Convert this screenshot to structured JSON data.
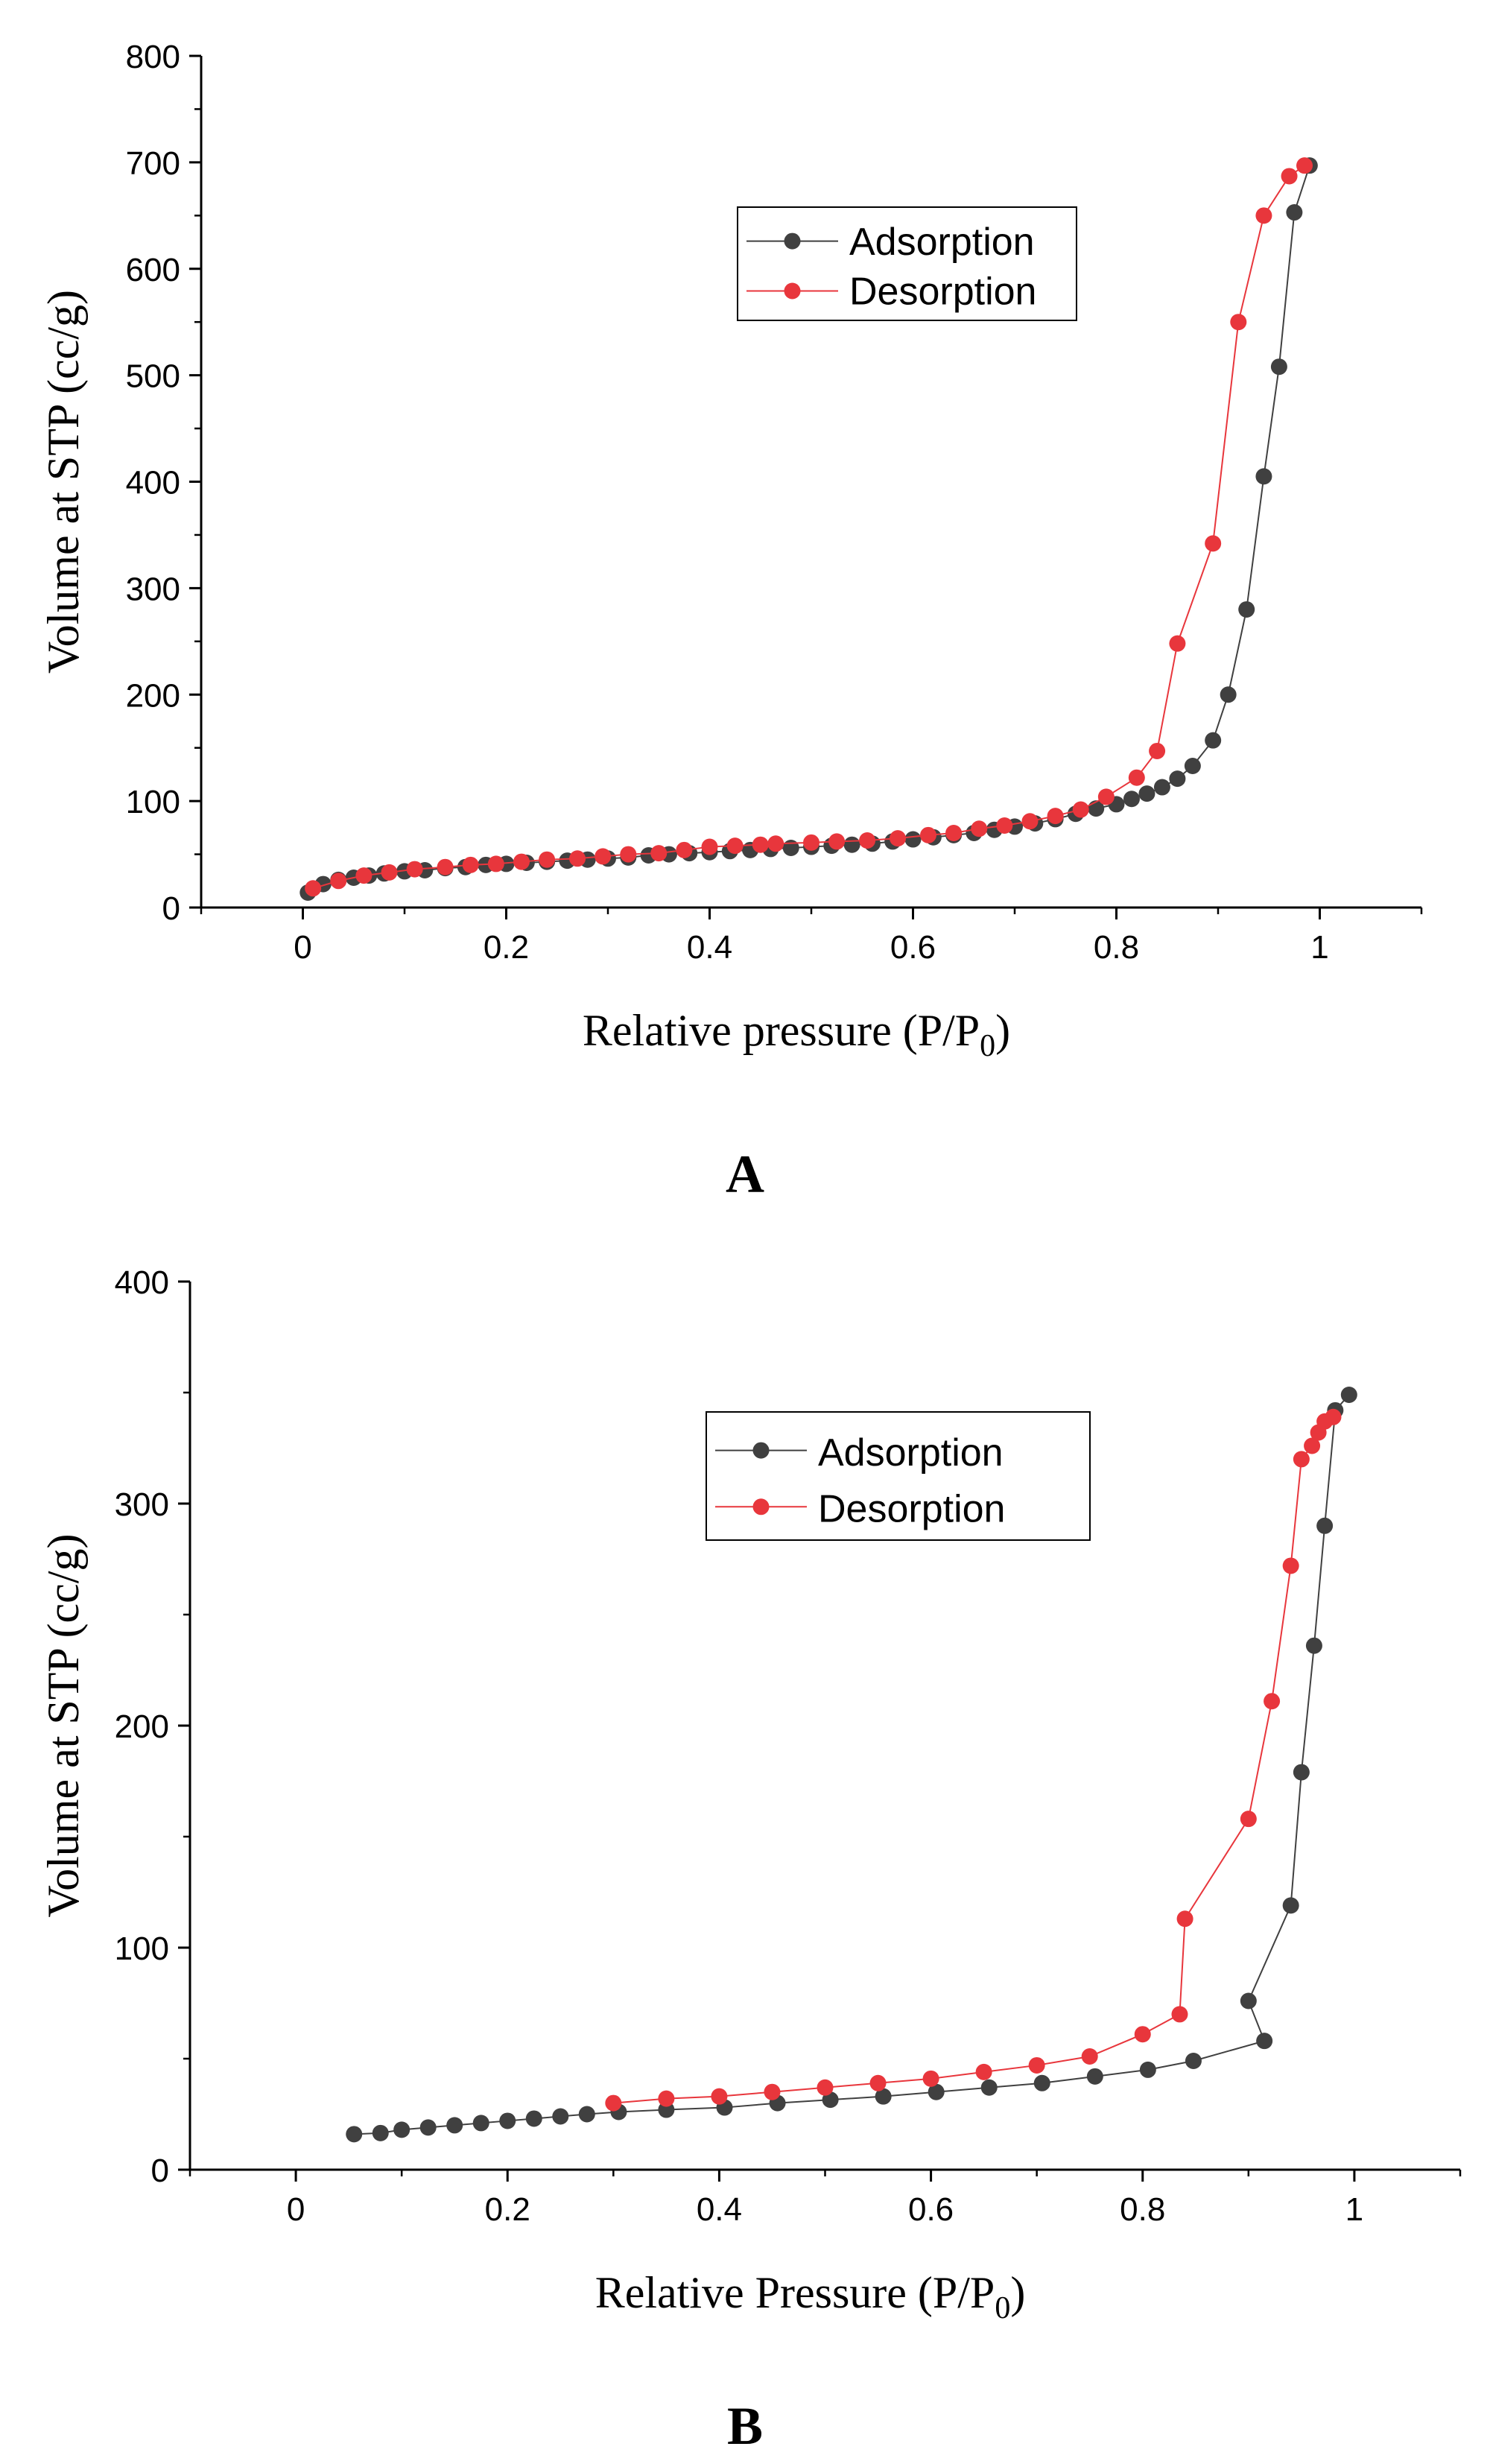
{
  "chart_data": [
    {
      "panel": "A",
      "type": "scatter",
      "title": "",
      "xlabel": "Relative pressure (P/P",
      "xlabel_sub": "0",
      "xlabel_close": ")",
      "ylabel": "Volume at STP (cc/g)",
      "xlim": [
        -0.1,
        1.1
      ],
      "ylim": [
        0,
        800
      ],
      "xticks": [
        0,
        0.2,
        0.4,
        0.6,
        0.8,
        1
      ],
      "xtick_labels": [
        "0",
        "0.2",
        "0.4",
        "0.6",
        "0.8",
        "1"
      ],
      "yticks": [
        0,
        100,
        200,
        300,
        400,
        500,
        600,
        700,
        800
      ],
      "ytick_labels": [
        "0",
        "100",
        "200",
        "300",
        "400",
        "500",
        "600",
        "700",
        "800"
      ],
      "legend_position": "top-right",
      "series": [
        {
          "name": "Adsorption",
          "color": "#404040",
          "x": [
            0.005,
            0.02,
            0.035,
            0.05,
            0.065,
            0.08,
            0.1,
            0.12,
            0.14,
            0.16,
            0.18,
            0.2,
            0.22,
            0.24,
            0.26,
            0.28,
            0.3,
            0.32,
            0.34,
            0.36,
            0.38,
            0.4,
            0.42,
            0.44,
            0.46,
            0.48,
            0.5,
            0.52,
            0.54,
            0.56,
            0.58,
            0.6,
            0.62,
            0.64,
            0.66,
            0.68,
            0.7,
            0.72,
            0.74,
            0.76,
            0.78,
            0.8,
            0.815,
            0.83,
            0.845,
            0.86,
            0.875,
            0.895,
            0.91,
            0.928,
            0.945,
            0.96,
            0.975,
            0.99
          ],
          "y": [
            14,
            22,
            26,
            28,
            30,
            32,
            34,
            35,
            37,
            38,
            40,
            41,
            42,
            43,
            44,
            45,
            46,
            47,
            49,
            50,
            51,
            52,
            53,
            54,
            55,
            56,
            57,
            58,
            59,
            60,
            62,
            64,
            66,
            68,
            70,
            73,
            76,
            79,
            83,
            88,
            93,
            97,
            102,
            107,
            113,
            121,
            133,
            157,
            200,
            280,
            405,
            508,
            653,
            697
          ]
        },
        {
          "name": "Desorption",
          "color": "#e8363c",
          "x": [
            0.985,
            0.97,
            0.945,
            0.92,
            0.895,
            0.86,
            0.84,
            0.82,
            0.79,
            0.765,
            0.74,
            0.715,
            0.69,
            0.665,
            0.64,
            0.615,
            0.585,
            0.555,
            0.525,
            0.5,
            0.465,
            0.45,
            0.425,
            0.4,
            0.375,
            0.35,
            0.32,
            0.295,
            0.27,
            0.24,
            0.215,
            0.19,
            0.165,
            0.14,
            0.11,
            0.085,
            0.06,
            0.035,
            0.01
          ],
          "y": [
            697,
            687,
            650,
            550,
            342,
            248,
            147,
            122,
            104,
            92,
            86,
            81,
            77,
            74,
            70,
            68,
            65,
            63,
            62,
            61,
            60,
            59,
            58,
            57,
            54,
            51,
            50,
            48,
            46,
            45,
            43,
            41,
            40,
            38,
            36,
            33,
            30,
            25,
            18
          ]
        }
      ]
    },
    {
      "panel": "B",
      "type": "scatter",
      "title": "",
      "xlabel": "Relative Pressure (P/P",
      "xlabel_sub": "0",
      "xlabel_close": ")",
      "ylabel": "Volume at STP (cc/g)",
      "xlim": [
        -0.1,
        1.1
      ],
      "ylim": [
        0,
        400
      ],
      "xticks": [
        0,
        0.2,
        0.4,
        0.6,
        0.8,
        1
      ],
      "xtick_labels": [
        "0",
        "0.2",
        "0.4",
        "0.6",
        "0.8",
        "1"
      ],
      "yticks": [
        0,
        100,
        200,
        300,
        400
      ],
      "ytick_labels": [
        "0",
        "100",
        "200",
        "300",
        "400"
      ],
      "legend_position": "top-right",
      "series": [
        {
          "name": "Adsorption",
          "color": "#404040",
          "x": [
            0.055,
            0.08,
            0.1,
            0.125,
            0.15,
            0.175,
            0.2,
            0.225,
            0.25,
            0.275,
            0.305,
            0.35,
            0.405,
            0.455,
            0.505,
            0.555,
            0.605,
            0.655,
            0.705,
            0.755,
            0.805,
            0.848,
            0.915,
            0.9,
            0.94,
            0.95,
            0.962,
            0.972,
            0.982,
            0.995
          ],
          "y": [
            16,
            16.5,
            18,
            19,
            20,
            21,
            22,
            23,
            24,
            25,
            26,
            27,
            28,
            30,
            31.5,
            33,
            35,
            37,
            39,
            42,
            45,
            49,
            58,
            76,
            119,
            179,
            236,
            290,
            342,
            349
          ],
          "order_note": "plotted in listed order"
        },
        {
          "name": "Desorption",
          "color": "#e8363c",
          "x": [
            0.98,
            0.972,
            0.966,
            0.96,
            0.95,
            0.94,
            0.922,
            0.9,
            0.84,
            0.835,
            0.8,
            0.75,
            0.7,
            0.65,
            0.6,
            0.55,
            0.5,
            0.45,
            0.4,
            0.35,
            0.3
          ],
          "y": [
            339,
            337,
            332,
            326,
            320,
            272,
            211,
            158,
            113,
            70,
            61,
            51,
            47,
            44,
            41,
            39,
            37,
            35,
            33,
            32,
            30
          ]
        }
      ]
    }
  ]
}
